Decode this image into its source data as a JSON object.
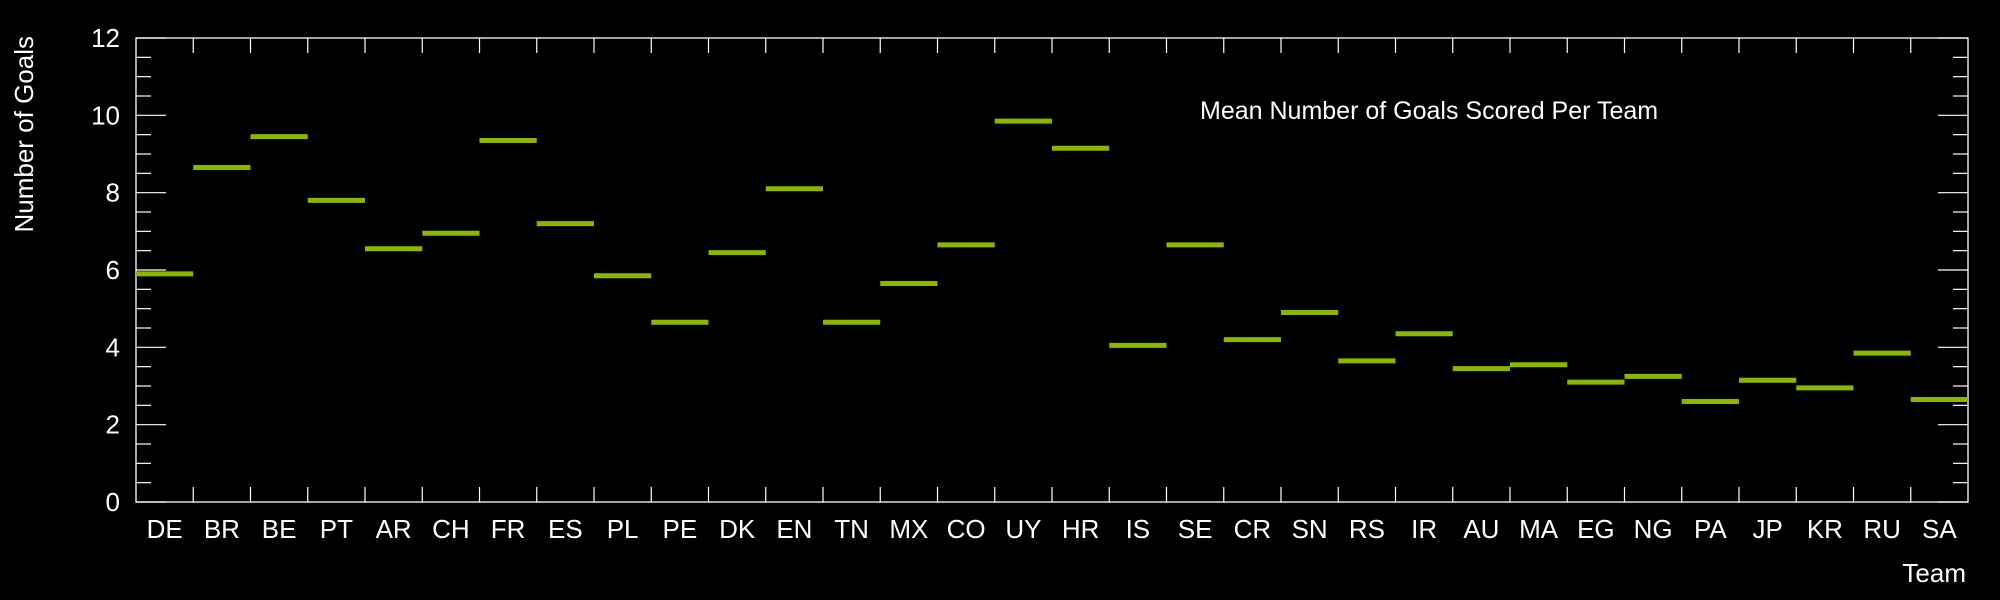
{
  "chart_data": {
    "type": "bar",
    "title": "Mean Number of Goals Scored Per Team",
    "xlabel": "Team",
    "ylabel": "Number of Goals",
    "ylim": [
      0,
      12
    ],
    "yticks": [
      0,
      2,
      4,
      6,
      8,
      10,
      12
    ],
    "categories": [
      "DE",
      "BR",
      "BE",
      "PT",
      "AR",
      "CH",
      "FR",
      "ES",
      "PL",
      "PE",
      "DK",
      "EN",
      "TN",
      "MX",
      "CO",
      "UY",
      "HR",
      "IS",
      "SE",
      "CR",
      "SN",
      "RS",
      "IR",
      "AU",
      "MA",
      "EG",
      "NG",
      "PA",
      "JP",
      "KR",
      "RU",
      "SA"
    ],
    "series": [
      {
        "values": [
          5.9,
          8.65,
          9.45,
          7.8,
          6.55,
          6.95,
          9.35,
          7.2,
          5.85,
          4.65,
          6.45,
          8.1,
          4.65,
          5.65,
          6.65,
          9.85,
          9.15,
          4.05,
          6.65,
          4.2,
          4.9,
          3.65,
          4.35,
          3.45,
          3.55,
          3.1,
          3.25,
          2.6,
          3.15,
          2.95,
          3.85,
          2.65
        ],
        "color": "#8db600"
      }
    ],
    "colors": {
      "background": "#000000",
      "axis": "#ffffff",
      "text": "#ffffff",
      "marker": "#8db600"
    },
    "grid": false,
    "legend": "none"
  }
}
